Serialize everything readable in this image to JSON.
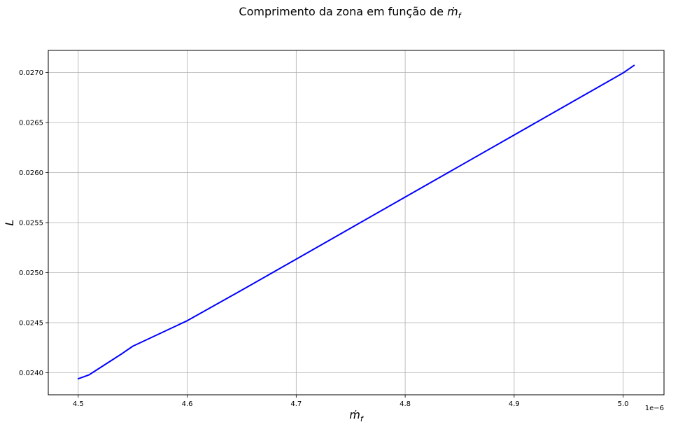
{
  "chart_data": {
    "type": "line",
    "title": "Comprimento da zona em função de ṁ_f",
    "title_parts": {
      "text": "Comprimento da zona em função de ",
      "math_base": "ṁ",
      "math_sub": "f"
    },
    "xlabel_parts": {
      "math_base": "ṁ",
      "math_sub": "f"
    },
    "ylabel": "L",
    "x_offset_text": "1e−6",
    "xlim": [
      4.4725,
      5.0375
    ],
    "ylim": [
      0.02378,
      0.02722
    ],
    "grid": true,
    "x_ticks": [
      4.5,
      4.6,
      4.7,
      4.8,
      4.9,
      5.0
    ],
    "x_tick_labels": [
      "4.5",
      "4.6",
      "4.7",
      "4.8",
      "4.9",
      "5.0"
    ],
    "y_ticks": [
      0.024,
      0.0245,
      0.025,
      0.0255,
      0.026,
      0.0265,
      0.027
    ],
    "y_tick_labels": [
      "0.0240",
      "0.0245",
      "0.0250",
      "0.0255",
      "0.0260",
      "0.0265",
      "0.0270"
    ],
    "series": [
      {
        "color": "#0000ff",
        "x": [
          4.5,
          4.505,
          4.51,
          4.515,
          4.52,
          4.53,
          4.54,
          4.55,
          4.6,
          4.65,
          4.7,
          4.75,
          4.8,
          4.85,
          4.9,
          4.95,
          5.0,
          5.01
        ],
        "y": [
          0.02394,
          0.02396,
          0.02398,
          0.024015,
          0.02405,
          0.02412,
          0.02419,
          0.024265,
          0.02452,
          0.024825,
          0.025135,
          0.025445,
          0.025755,
          0.026065,
          0.026375,
          0.026685,
          0.026995,
          0.02707
        ]
      }
    ]
  }
}
